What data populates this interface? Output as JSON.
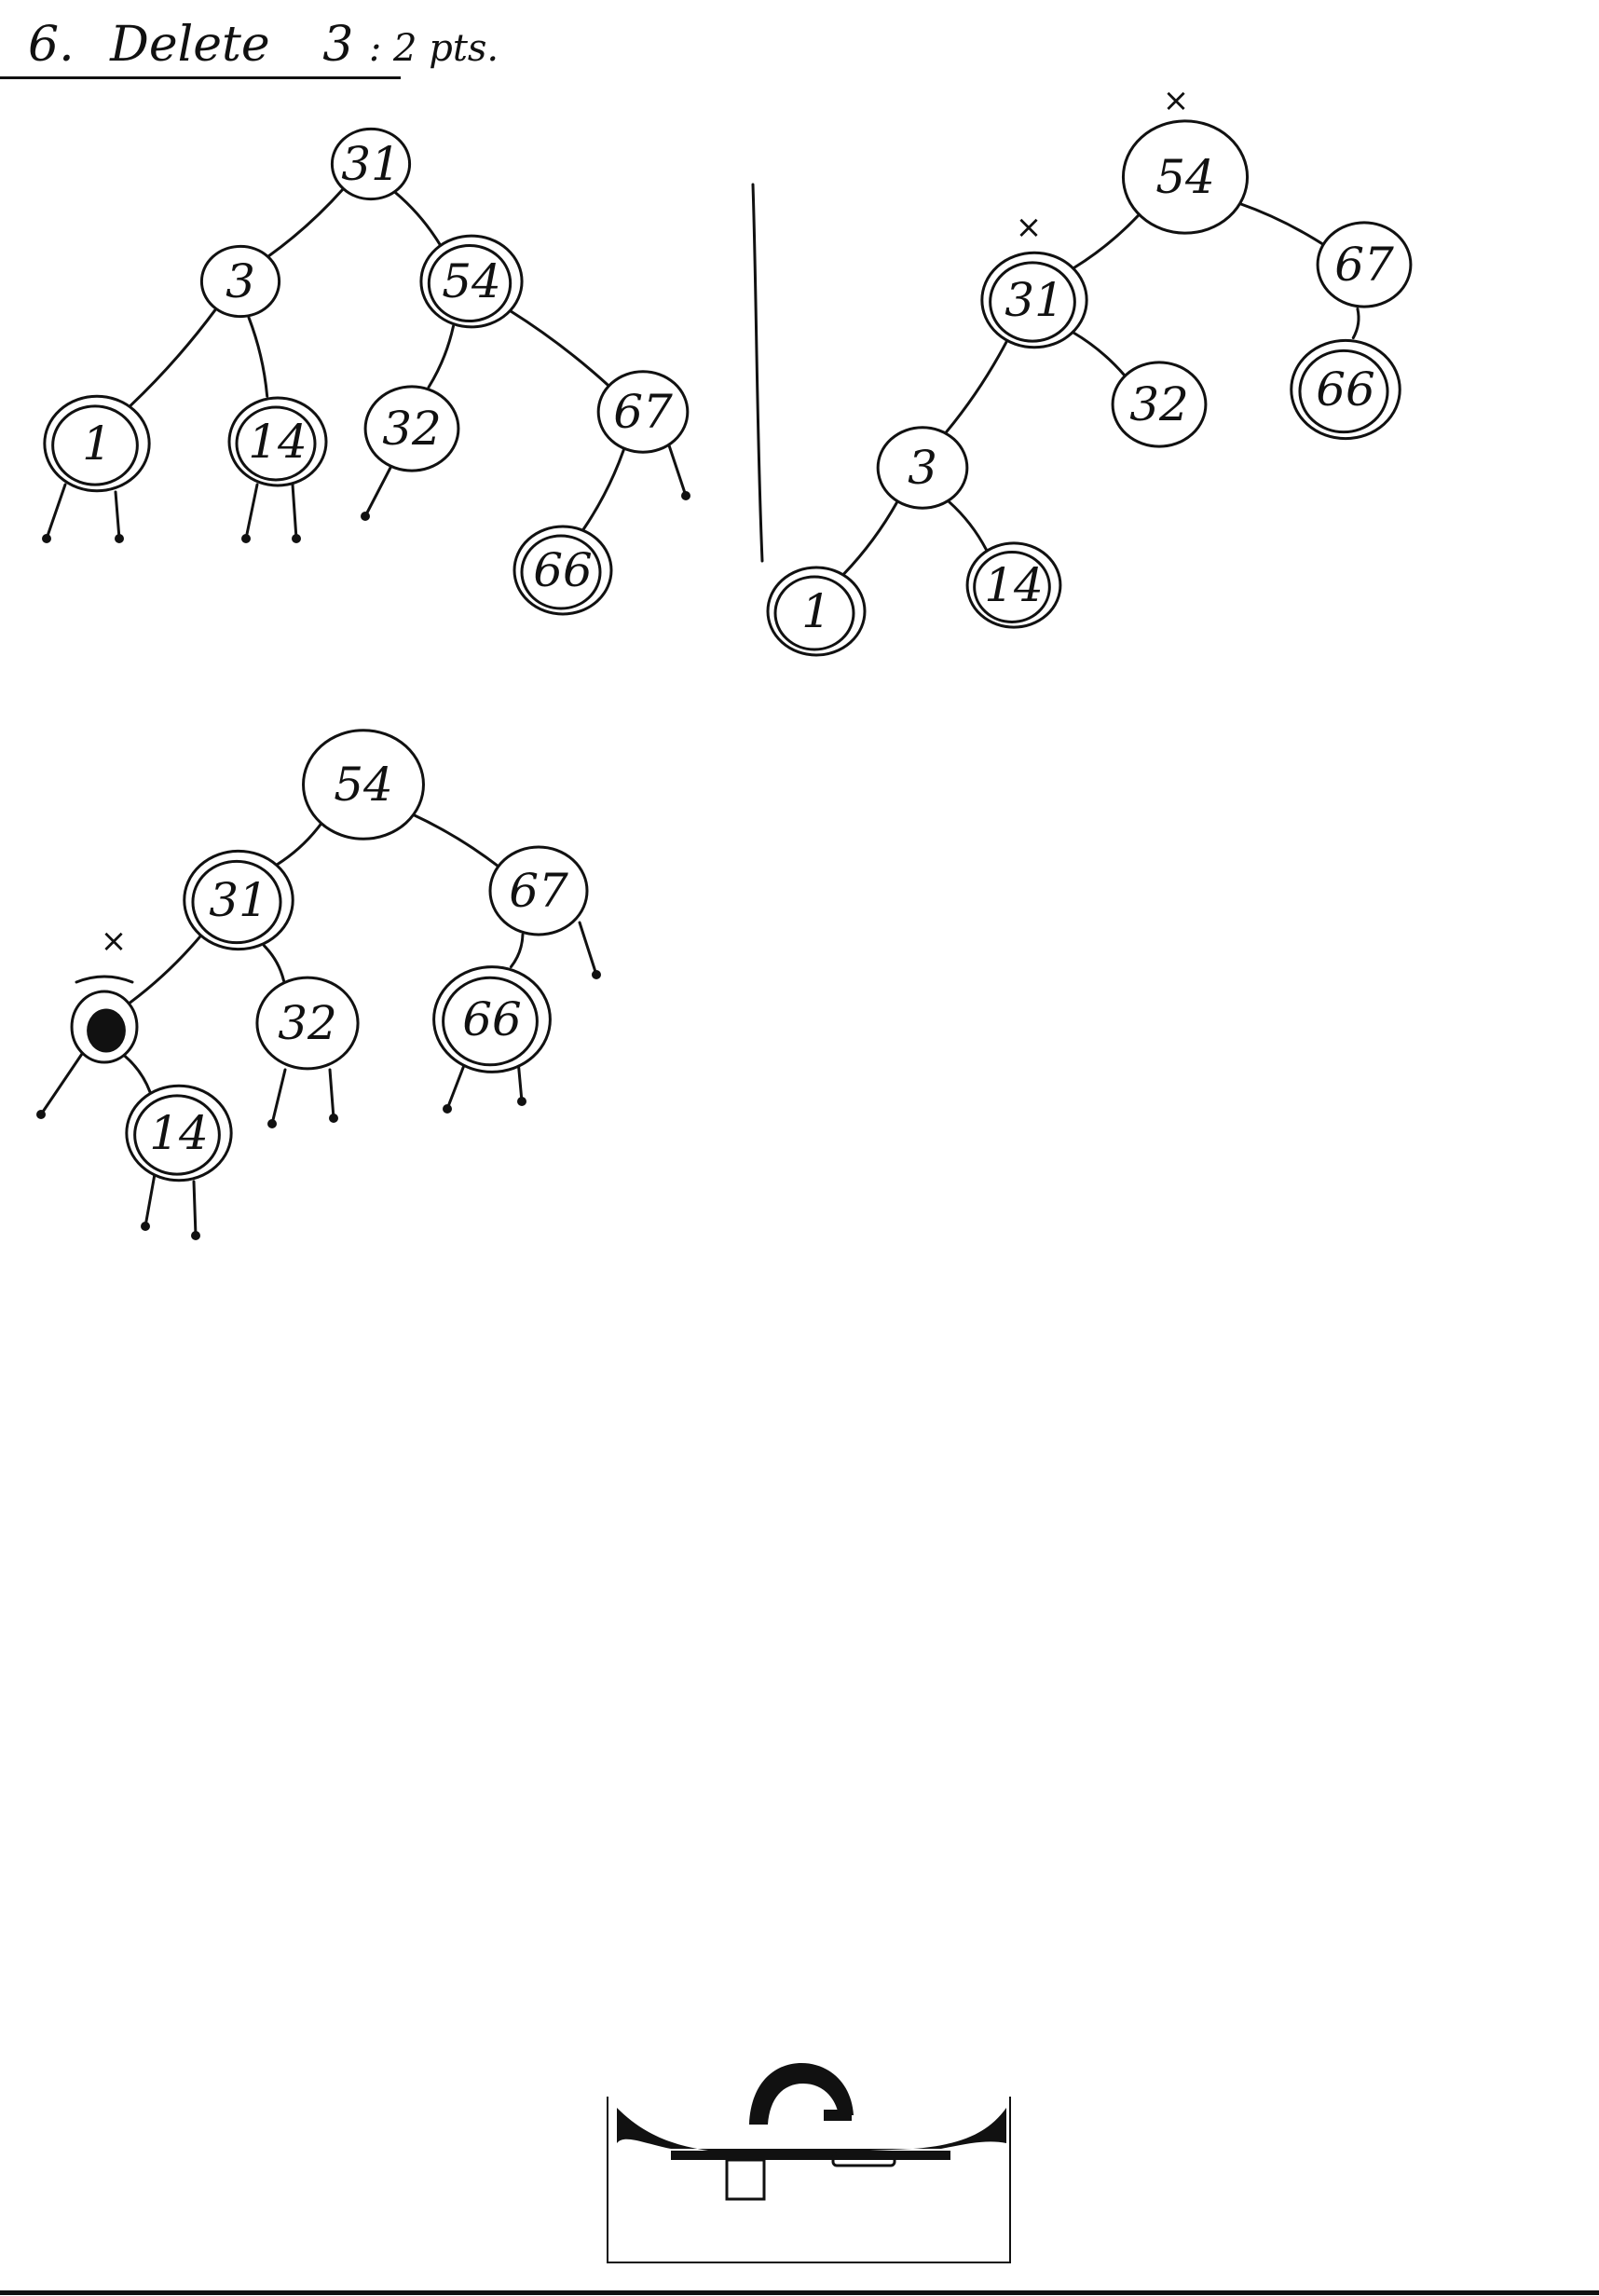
{
  "heading": {
    "number": "6.",
    "title": "Delete",
    "key": "3",
    "points": ": 2 pts."
  },
  "trees": [
    {
      "id": "before",
      "nodes": [
        {
          "id": "n31",
          "label": "31",
          "ring": "single"
        },
        {
          "id": "n3",
          "label": "3",
          "ring": "single"
        },
        {
          "id": "n54",
          "label": "54",
          "ring": "double"
        },
        {
          "id": "n1",
          "label": "1",
          "ring": "double"
        },
        {
          "id": "n14",
          "label": "14",
          "ring": "double"
        },
        {
          "id": "n32",
          "label": "32",
          "ring": "single"
        },
        {
          "id": "n67",
          "label": "67",
          "ring": "single"
        },
        {
          "id": "n66",
          "label": "66",
          "ring": "double"
        }
      ],
      "edges": [
        [
          "n31",
          "n3"
        ],
        [
          "n31",
          "n54"
        ],
        [
          "n3",
          "n1"
        ],
        [
          "n3",
          "n14"
        ],
        [
          "n54",
          "n32"
        ],
        [
          "n54",
          "n67"
        ],
        [
          "n67",
          "n66"
        ]
      ],
      "marks": []
    },
    {
      "id": "after-rotation",
      "nodes": [
        {
          "id": "m54",
          "label": "54",
          "ring": "single"
        },
        {
          "id": "m31",
          "label": "31",
          "ring": "double"
        },
        {
          "id": "m67",
          "label": "67",
          "ring": "single"
        },
        {
          "id": "m3",
          "label": "3",
          "ring": "single"
        },
        {
          "id": "m32",
          "label": "32",
          "ring": "single"
        },
        {
          "id": "m66",
          "label": "66",
          "ring": "double"
        },
        {
          "id": "m1",
          "label": "1",
          "ring": "double"
        },
        {
          "id": "m14",
          "label": "14",
          "ring": "double"
        }
      ],
      "edges": [
        [
          "m54",
          "m31"
        ],
        [
          "m54",
          "m67"
        ],
        [
          "m31",
          "m3"
        ],
        [
          "m31",
          "m32"
        ],
        [
          "m67",
          "m66"
        ],
        [
          "m3",
          "m1"
        ],
        [
          "m3",
          "m14"
        ]
      ],
      "marks": [
        {
          "label": "×",
          "near": "m54"
        },
        {
          "label": "×",
          "near": "m31"
        }
      ]
    },
    {
      "id": "result",
      "nodes": [
        {
          "id": "r54",
          "label": "54",
          "ring": "single"
        },
        {
          "id": "r31",
          "label": "31",
          "ring": "double"
        },
        {
          "id": "r67",
          "label": "67",
          "ring": "single"
        },
        {
          "id": "r1",
          "label": "",
          "ring": "filled"
        },
        {
          "id": "r32",
          "label": "32",
          "ring": "single"
        },
        {
          "id": "r66",
          "label": "66",
          "ring": "double"
        },
        {
          "id": "r14",
          "label": "14",
          "ring": "double"
        }
      ],
      "edges": [
        [
          "r54",
          "r31"
        ],
        [
          "r54",
          "r67"
        ],
        [
          "r31",
          "r1"
        ],
        [
          "r31",
          "r32"
        ],
        [
          "r67",
          "r66"
        ],
        [
          "r1",
          "r14"
        ]
      ],
      "marks": [
        {
          "label": "×",
          "near": "r1"
        }
      ]
    }
  ]
}
